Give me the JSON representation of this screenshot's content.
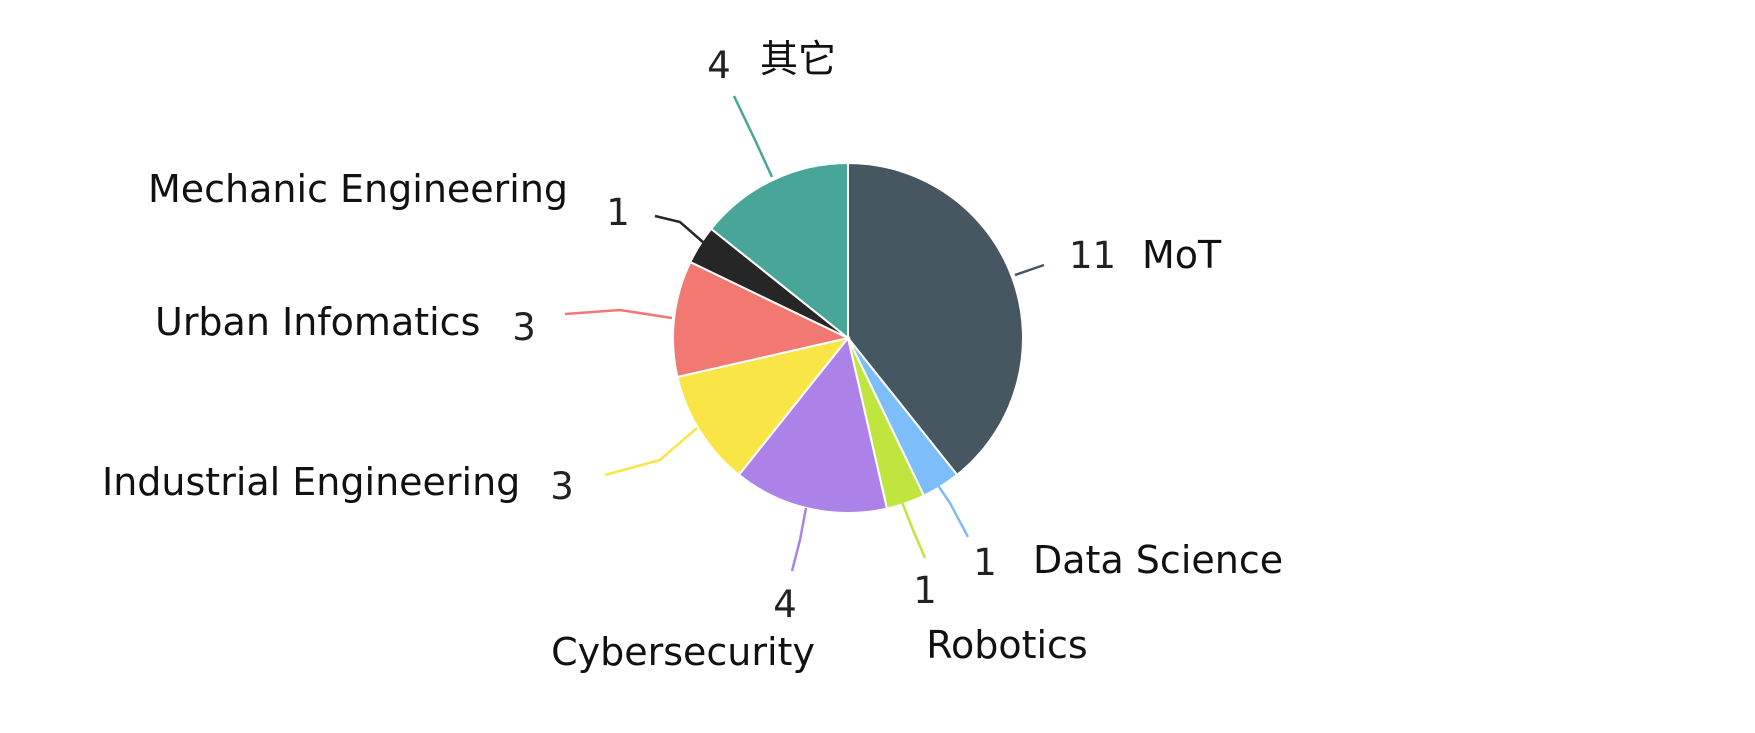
{
  "chart_data": {
    "type": "pie",
    "title": "",
    "slices": [
      {
        "label": "MoT",
        "value": 11,
        "color": "#465762"
      },
      {
        "label": "Data Science",
        "value": 1,
        "color": "#7cbdfa"
      },
      {
        "label": "Robotics",
        "value": 1,
        "color": "#c0e53e"
      },
      {
        "label": "Cybersecurity",
        "value": 4,
        "color": "#ac82e8"
      },
      {
        "label": "Industrial Engineering",
        "value": 3,
        "color": "#f9e646"
      },
      {
        "label": "Urban Infomatics",
        "value": 3,
        "color": "#f27872"
      },
      {
        "label": "Mechanic Engineering",
        "value": 1,
        "color": "#262626"
      },
      {
        "label": "其它",
        "value": 4,
        "color": "#48a699"
      }
    ],
    "start_angle": "12 o'clock",
    "direction": "clockwise",
    "legend": "none",
    "label_style": "outside with leader lines"
  }
}
